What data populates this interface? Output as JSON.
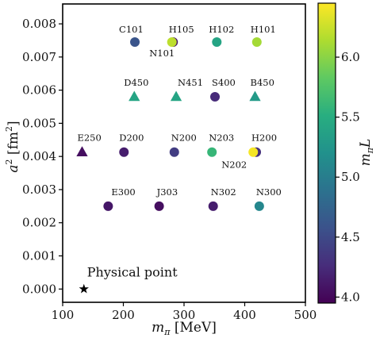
{
  "chart_data": {
    "type": "scatter",
    "xlabel": "m_π [MeV]",
    "ylabel": "a² [fm²]",
    "colorbar_label": "m_π L",
    "xlim": [
      100,
      500
    ],
    "ylim": [
      -0.0004,
      0.0086
    ],
    "xticks": [
      "100",
      "200",
      "300",
      "400",
      "500"
    ],
    "yticks": [
      "0.000",
      "0.001",
      "0.002",
      "0.003",
      "0.004",
      "0.005",
      "0.006",
      "0.007",
      "0.008"
    ],
    "colorbar_ticks": [
      "4.0",
      "4.5",
      "5.0",
      "5.5",
      "6.0"
    ],
    "colorbar_range": [
      3.95,
      6.45
    ],
    "colormap": "viridis",
    "points": [
      {
        "name": "C101",
        "x": 219,
        "y": 0.00745,
        "marker": "circle",
        "color_value": 4.6
      },
      {
        "name": "N101",
        "x": 282,
        "y": 0.00745,
        "marker": "circle",
        "color_value": 4.1
      },
      {
        "name": "H105",
        "x": 280,
        "y": 0.00745,
        "marker": "circle",
        "color_value": 6.2
      },
      {
        "name": "H102",
        "x": 354,
        "y": 0.00745,
        "marker": "circle",
        "color_value": 5.4
      },
      {
        "name": "H101",
        "x": 420,
        "y": 0.00745,
        "marker": "circle",
        "color_value": 6.1
      },
      {
        "name": "D450",
        "x": 218,
        "y": 0.0058,
        "marker": "triangle",
        "color_value": 5.4
      },
      {
        "name": "N451",
        "x": 287,
        "y": 0.0058,
        "marker": "triangle",
        "color_value": 5.4
      },
      {
        "name": "S400",
        "x": 351,
        "y": 0.0058,
        "marker": "circle",
        "color_value": 4.25
      },
      {
        "name": "B450",
        "x": 417,
        "y": 0.0058,
        "marker": "triangle",
        "color_value": 5.3
      },
      {
        "name": "E250",
        "x": 132,
        "y": 0.00413,
        "marker": "triangle",
        "color_value": 4.05
      },
      {
        "name": "D200",
        "x": 201,
        "y": 0.00413,
        "marker": "circle",
        "color_value": 4.15
      },
      {
        "name": "N200",
        "x": 284,
        "y": 0.00413,
        "marker": "circle",
        "color_value": 4.4
      },
      {
        "name": "N203",
        "x": 346,
        "y": 0.00413,
        "marker": "circle",
        "color_value": 5.6
      },
      {
        "name": "N202",
        "x": 414,
        "y": 0.00413,
        "marker": "circle",
        "color_value": 6.42
      },
      {
        "name": "H200",
        "x": 419,
        "y": 0.00413,
        "marker": "circle",
        "color_value": 4.3
      },
      {
        "name": "E300",
        "x": 175,
        "y": 0.0025,
        "marker": "circle",
        "color_value": 4.1
      },
      {
        "name": "J303",
        "x": 259,
        "y": 0.0025,
        "marker": "circle",
        "color_value": 4.05
      },
      {
        "name": "N302",
        "x": 348,
        "y": 0.0025,
        "marker": "circle",
        "color_value": 4.15
      },
      {
        "name": "N300",
        "x": 424,
        "y": 0.0025,
        "marker": "circle",
        "color_value": 5.1
      },
      {
        "name": "Physical point",
        "x": 135,
        "y": 0.0,
        "marker": "star",
        "color": "#000000"
      }
    ]
  }
}
